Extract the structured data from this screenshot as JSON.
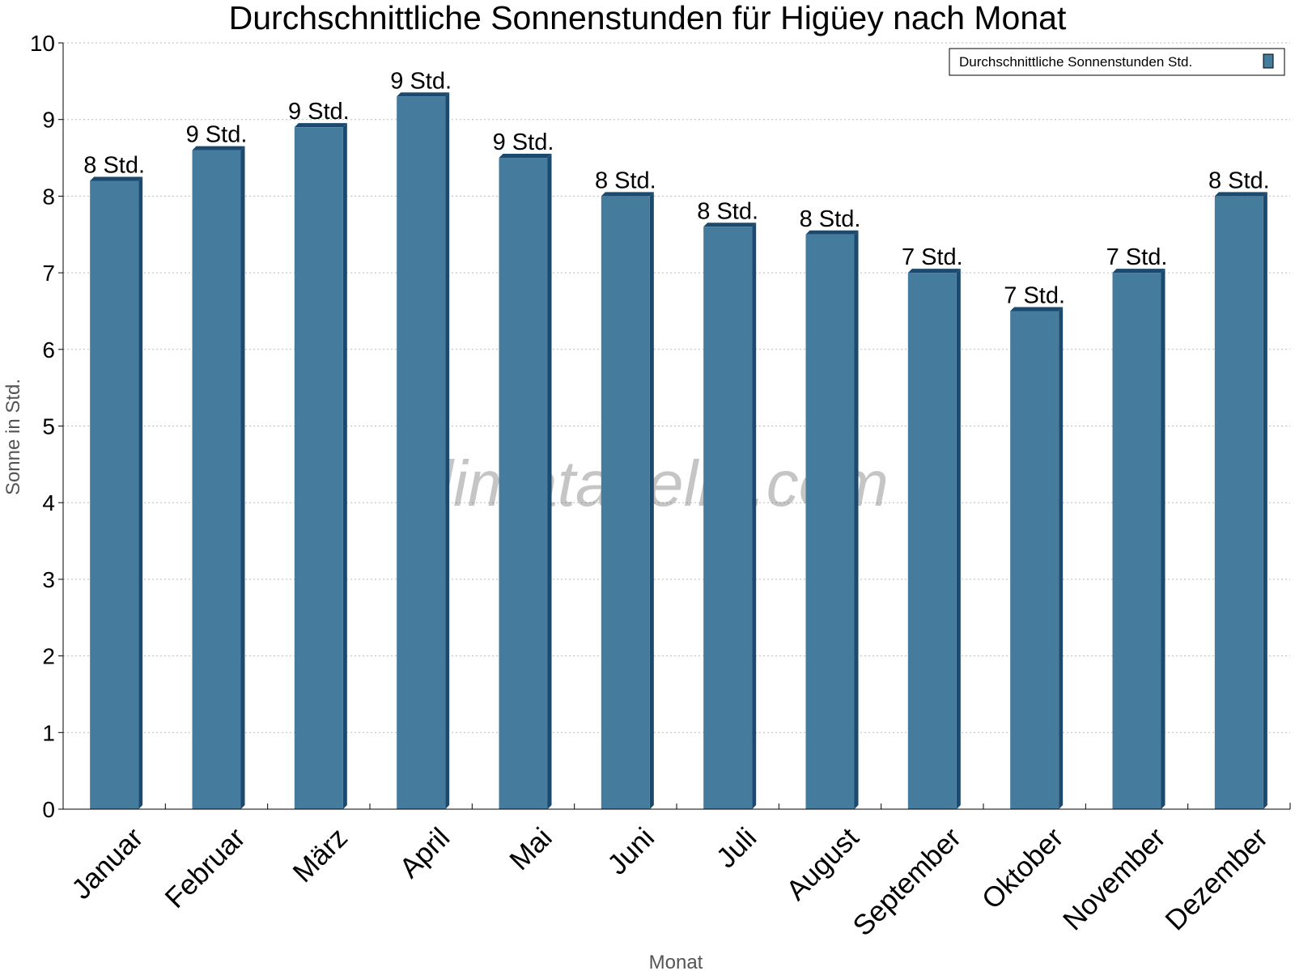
{
  "chart_data": {
    "type": "bar",
    "title": "Durchschnittliche Sonnenstunden für Higüey nach Monat",
    "xlabel": "Monat",
    "ylabel": "Sonne in Std.",
    "ylim": [
      0,
      10
    ],
    "y_ticks": [
      "0",
      "1",
      "2",
      "3",
      "4",
      "5",
      "6",
      "7",
      "8",
      "9",
      "10"
    ],
    "grid": true,
    "legend_position": "top-right",
    "categories": [
      "Januar",
      "Februar",
      "März",
      "April",
      "Mai",
      "Juni",
      "Juli",
      "August",
      "September",
      "Oktober",
      "November",
      "Dezember"
    ],
    "series": [
      {
        "name": "Durchschnittliche Sonnenstunden Std.",
        "values": [
          8.2,
          8.6,
          8.9,
          9.3,
          8.5,
          8.0,
          7.6,
          7.5,
          7.0,
          6.5,
          7.0,
          8.0
        ],
        "data_labels": [
          "8 Std.",
          "9 Std.",
          "9 Std.",
          "9 Std.",
          "9 Std.",
          "8 Std.",
          "8 Std.",
          "8 Std.",
          "7 Std.",
          "7 Std.",
          "7 Std.",
          "8 Std."
        ],
        "color": "#457b9d",
        "shadow_color": "#1c4a6e"
      }
    ],
    "watermark": "klimatabelle.com"
  }
}
